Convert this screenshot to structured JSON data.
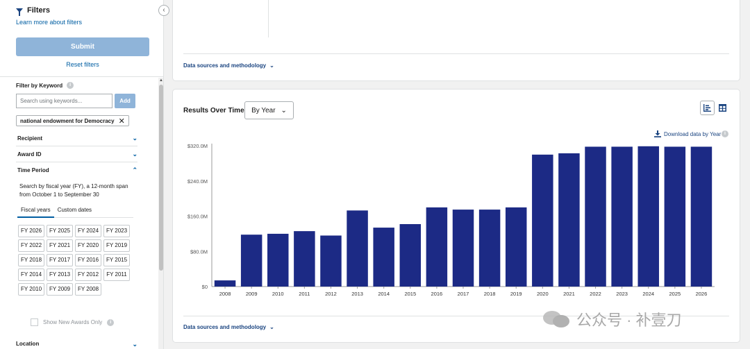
{
  "sidebar": {
    "filters_title": "Filters",
    "learn_more": "Learn more about filters",
    "submit_label": "Submit",
    "reset_label": "Reset filters",
    "keyword": {
      "label": "Filter by Keyword",
      "placeholder": "Search using keywords...",
      "add_label": "Add",
      "chip": "national endowment for Democracy"
    },
    "accordions": [
      {
        "label": "Recipient",
        "state": "collapsed"
      },
      {
        "label": "Award ID",
        "state": "collapsed"
      },
      {
        "label": "Time Period",
        "state": "expanded"
      }
    ],
    "time_period": {
      "description": "Search by fiscal year (FY), a 12-month span from October 1 to September 30",
      "tabs": [
        "Fiscal years",
        "Custom dates"
      ],
      "fiscal_years": [
        "FY 2026",
        "FY 2025",
        "FY 2024",
        "FY 2023",
        "FY 2022",
        "FY 2021",
        "FY 2020",
        "FY 2019",
        "FY 2018",
        "FY 2017",
        "FY 2016",
        "FY 2015",
        "FY 2014",
        "FY 2013",
        "FY 2012",
        "FY 2011",
        "FY 2010",
        "FY 2009",
        "FY 2008"
      ]
    },
    "show_new_awards": "Show New Awards Only",
    "location_label": "Location"
  },
  "main": {
    "data_sources_label": "Data sources and methodology",
    "results_title": "Results Over Time",
    "period_select": "By Year",
    "download_label": "Download data by Year"
  },
  "chart_data": {
    "type": "bar",
    "categories": [
      "2008",
      "2009",
      "2010",
      "2011",
      "2012",
      "2013",
      "2014",
      "2015",
      "2016",
      "2017",
      "2018",
      "2019",
      "2020",
      "2021",
      "2022",
      "2023",
      "2024",
      "2025",
      "2026"
    ],
    "values": [
      14,
      118,
      120,
      126,
      116,
      173,
      134,
      142,
      180,
      175,
      175,
      180,
      300,
      303,
      318,
      318,
      319,
      318,
      318
    ],
    "unit": "$M",
    "y_ticks": [
      "$0",
      "$80.0M",
      "$160.0M",
      "$240.0M",
      "$320.0M"
    ],
    "ylim": [
      0,
      325
    ],
    "bar_color": "#1c2a85",
    "grid": false
  },
  "watermark": {
    "text": "公众号 · 补壹刀"
  }
}
